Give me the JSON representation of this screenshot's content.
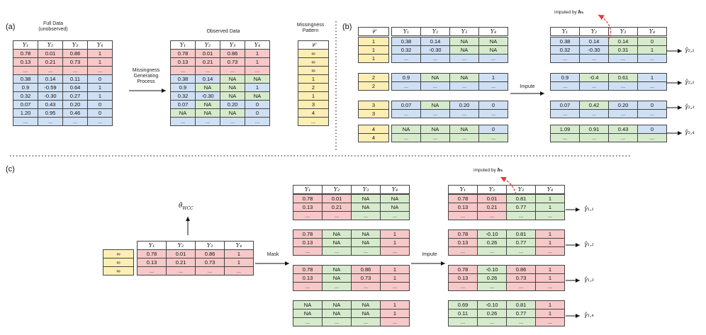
{
  "panels": {
    "a": "(a)",
    "b": "(b)",
    "c": "(c)"
  },
  "headers": [
    "Y₁",
    "Y₂",
    "Y₃",
    "Y₄"
  ],
  "c_header": "𝒞",
  "a": {
    "full_label": "Full Data\n(unobserved)",
    "observed_label": "Observed Data",
    "pattern_label": "Missingness\nPattern",
    "process_label": "Missingness\nGenerating\nProcess",
    "full_rows": [
      [
        "0.78",
        "0.01",
        "0.86",
        "1"
      ],
      [
        "0.13",
        "0.21",
        "0.73",
        "1"
      ],
      [
        "...",
        "...",
        "...",
        "..."
      ],
      [
        "0.38",
        "0.14",
        "0.11",
        "0"
      ],
      [
        "0.9",
        "-0.59",
        "0.64",
        "1"
      ],
      [
        "0.32",
        "-0.30",
        "0.27",
        "1"
      ],
      [
        "0.07",
        "0.43",
        "0.20",
        "0"
      ],
      [
        "1.20",
        "0.95",
        "0.46",
        "0"
      ],
      [
        "...",
        "...",
        "...",
        "..."
      ]
    ],
    "observed_rows": [
      [
        "0.78",
        "0.01",
        "0.86",
        "1"
      ],
      [
        "0.13",
        "0.21",
        "0.73",
        "1"
      ],
      [
        "...",
        "...",
        "...",
        "..."
      ],
      [
        "0.38",
        "0.14",
        "NA",
        "NA"
      ],
      [
        "0.9",
        "NA",
        "NA",
        "1"
      ],
      [
        "0.32",
        "-0.30",
        "NA",
        "NA"
      ],
      [
        "0.07",
        "NA",
        "0.20",
        "0"
      ],
      [
        "NA",
        "NA",
        "NA",
        "0"
      ],
      [
        "...",
        "...",
        "...",
        "..."
      ]
    ],
    "pattern": [
      "∞",
      "∞",
      "∞",
      "1",
      "2",
      "1",
      "3",
      "4",
      "..."
    ]
  },
  "b": {
    "impute_label": "Impute",
    "imputed_by": "imputed by",
    "imputed_sym": "hₖ",
    "groups": [
      {
        "c": [
          "1",
          "1",
          "1"
        ],
        "left": [
          [
            "0.38",
            "0.14",
            "NA",
            "NA"
          ],
          [
            "0.32",
            "-0.30",
            "NA",
            "NA"
          ],
          [
            "...",
            "...",
            "...",
            "..."
          ]
        ],
        "right": [
          [
            "0.38",
            "0.14",
            "0.14",
            "0"
          ],
          [
            "0.32",
            "-0.30",
            "0.31",
            "1"
          ],
          [
            "...",
            "...",
            "...",
            "..."
          ]
        ],
        "gamma": "γ̂₂,₁"
      },
      {
        "c": [
          "2",
          "2"
        ],
        "left": [
          [
            "0.9",
            "NA",
            "NA",
            "1"
          ],
          [
            "...",
            "...",
            "...",
            "..."
          ]
        ],
        "right": [
          [
            "0.9",
            "-0.4",
            "0.61",
            "1"
          ],
          [
            "...",
            "...",
            "...",
            "..."
          ]
        ],
        "gamma": "γ̂₂,₂"
      },
      {
        "c": [
          "3",
          "3"
        ],
        "left": [
          [
            "0.07",
            "NA",
            "0.20",
            "0"
          ],
          [
            "...",
            "...",
            "...",
            "..."
          ]
        ],
        "right": [
          [
            "0.07",
            "0.42",
            "0.20",
            "0"
          ],
          [
            "...",
            "...",
            "...",
            "..."
          ]
        ],
        "gamma": "γ̂₂,₃"
      },
      {
        "c": [
          "4",
          "4"
        ],
        "left": [
          [
            "NA",
            "NA",
            "NA",
            "0"
          ],
          [
            "...",
            "...",
            "...",
            "..."
          ]
        ],
        "right": [
          [
            "1.09",
            "0.91",
            "0.43",
            "0"
          ],
          [
            "...",
            "...",
            "...",
            "..."
          ]
        ],
        "gamma": "γ̂₂,₄"
      }
    ]
  },
  "c": {
    "theta": "θ̂",
    "theta_sub": "WCC",
    "mask_label": "Mask",
    "impute_label": "Impute",
    "imputed_by": "imputed by",
    "imputed_sym": "hₖ",
    "c_vals": [
      "∞",
      "∞",
      "∞"
    ],
    "src_rows": [
      [
        "0.78",
        "0.01",
        "0.86",
        "1"
      ],
      [
        "0.13",
        "0.21",
        "0.73",
        "1"
      ],
      [
        "...",
        "...",
        "...",
        "..."
      ]
    ],
    "groups": [
      {
        "left": [
          [
            "0.78",
            "0.01",
            "NA",
            "NA"
          ],
          [
            "0.13",
            "0.21",
            "NA",
            "NA"
          ],
          [
            "...",
            "...",
            "...",
            "..."
          ]
        ],
        "right": [
          [
            "0.78",
            "0.01",
            "0.81",
            "1"
          ],
          [
            "0.13",
            "0.21",
            "0.77",
            "1"
          ],
          [
            "...",
            "...",
            "...",
            "..."
          ]
        ],
        "gamma": "γ̂₁,₁"
      },
      {
        "left": [
          [
            "0.78",
            "NA",
            "NA",
            "1"
          ],
          [
            "0.13",
            "NA",
            "NA",
            "1"
          ],
          [
            "...",
            "...",
            "...",
            "..."
          ]
        ],
        "right": [
          [
            "0.78",
            "-0.10",
            "0.81",
            "1"
          ],
          [
            "0.13",
            "0.26",
            "0.77",
            "1"
          ],
          [
            "...",
            "...",
            "...",
            "..."
          ]
        ],
        "gamma": "γ̂₁,₂"
      },
      {
        "left": [
          [
            "0.78",
            "NA",
            "0.86",
            "1"
          ],
          [
            "0.13",
            "NA",
            "0.73",
            "1"
          ],
          [
            "...",
            "...",
            "...",
            "..."
          ]
        ],
        "right": [
          [
            "0.78",
            "-0.10",
            "0.86",
            "1"
          ],
          [
            "0.13",
            "0.26",
            "0.73",
            "1"
          ],
          [
            "...",
            "...",
            "...",
            "..."
          ]
        ],
        "gamma": "γ̂₁,₃"
      },
      {
        "left": [
          [
            "NA",
            "NA",
            "NA",
            "1"
          ],
          [
            "NA",
            "NA",
            "NA",
            "1"
          ],
          [
            "...",
            "...",
            "...",
            "..."
          ]
        ],
        "right": [
          [
            "0.69",
            "-0.10",
            "0.81",
            "1"
          ],
          [
            "0.11",
            "0.26",
            "0.77",
            "1"
          ],
          [
            "...",
            "...",
            "...",
            "..."
          ]
        ],
        "gamma": "γ̂₁,₄"
      }
    ]
  },
  "colors": {
    "observed_red": "#f6c8c8",
    "missing_green": "#d6ebcc",
    "partial_blue": "#cfe0f4",
    "pattern_yellow": "#fdeeb4",
    "arrow_red": "#e53935"
  }
}
